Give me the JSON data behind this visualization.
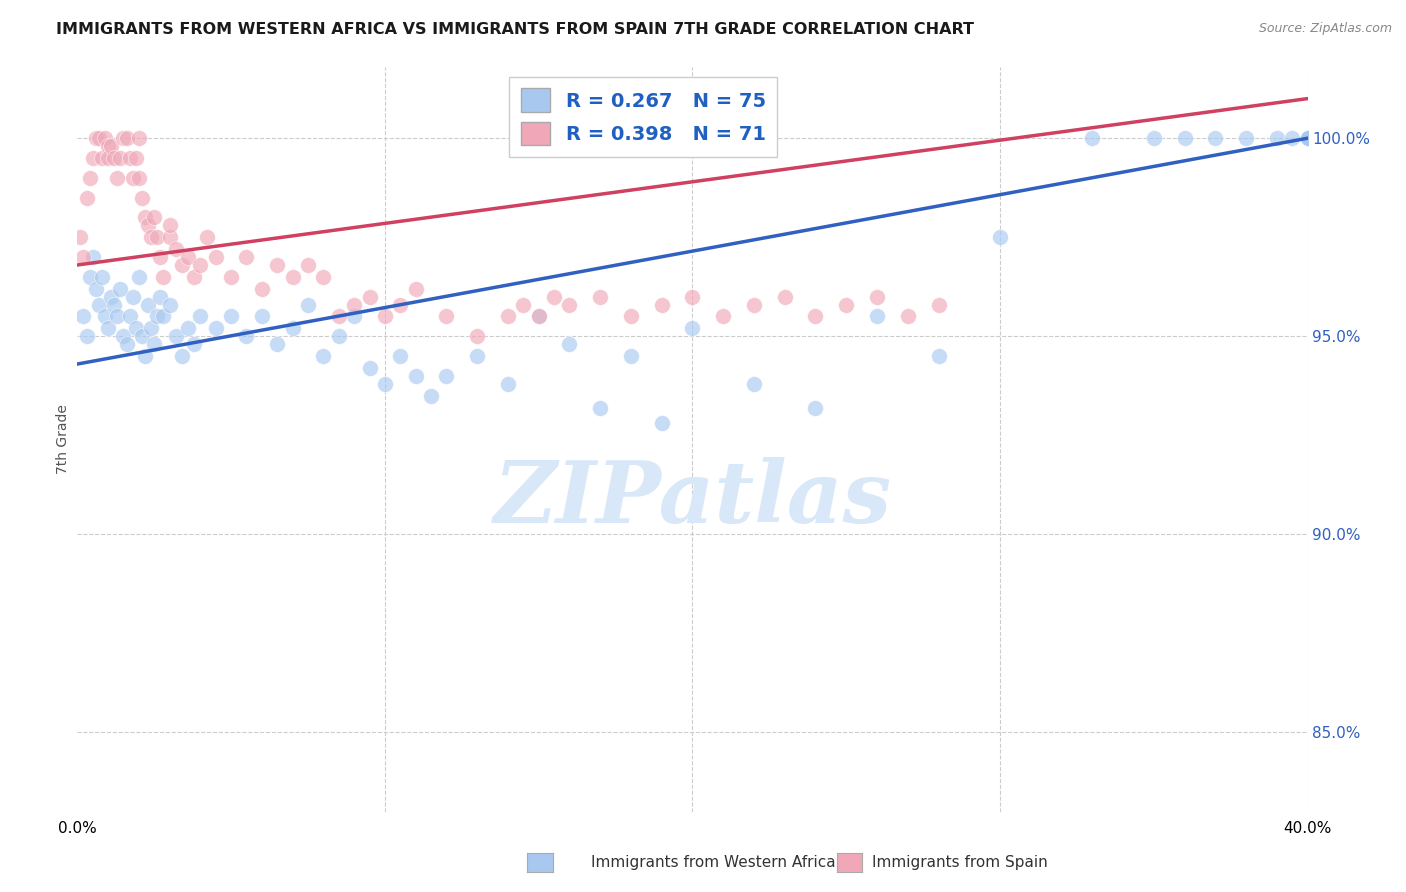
{
  "title": "IMMIGRANTS FROM WESTERN AFRICA VS IMMIGRANTS FROM SPAIN 7TH GRADE CORRELATION CHART",
  "source": "Source: ZipAtlas.com",
  "ylabel": "7th Grade",
  "xlim": [
    0.0,
    40.0
  ],
  "ylim": [
    83.0,
    101.8
  ],
  "R_blue": 0.267,
  "N_blue": 75,
  "R_pink": 0.398,
  "N_pink": 71,
  "blue_color": "#a8c8f0",
  "pink_color": "#f0a8b8",
  "blue_line_color": "#3060c0",
  "pink_line_color": "#d04060",
  "legend_text_color": "#2060c0",
  "watermark_color": "#d8e8f8",
  "background_color": "#ffffff",
  "grid_color": "#cccccc",
  "blue_x": [
    0.2,
    0.3,
    0.4,
    0.5,
    0.6,
    0.7,
    0.8,
    0.9,
    1.0,
    1.1,
    1.2,
    1.3,
    1.4,
    1.5,
    1.6,
    1.7,
    1.8,
    1.9,
    2.0,
    2.1,
    2.2,
    2.3,
    2.4,
    2.5,
    2.6,
    2.7,
    2.8,
    3.0,
    3.2,
    3.4,
    3.6,
    3.8,
    4.0,
    4.5,
    5.0,
    5.5,
    6.0,
    6.5,
    7.0,
    7.5,
    8.0,
    8.5,
    9.0,
    9.5,
    10.0,
    10.5,
    11.0,
    11.5,
    12.0,
    13.0,
    14.0,
    15.0,
    16.0,
    17.0,
    18.0,
    19.0,
    20.0,
    22.0,
    24.0,
    26.0,
    28.0,
    30.0,
    33.0,
    35.0,
    36.0,
    37.0,
    38.0,
    39.0,
    39.5,
    40.0,
    40.0,
    40.0,
    40.0,
    40.0,
    40.0
  ],
  "blue_y": [
    95.5,
    95.0,
    96.5,
    97.0,
    96.2,
    95.8,
    96.5,
    95.5,
    95.2,
    96.0,
    95.8,
    95.5,
    96.2,
    95.0,
    94.8,
    95.5,
    96.0,
    95.2,
    96.5,
    95.0,
    94.5,
    95.8,
    95.2,
    94.8,
    95.5,
    96.0,
    95.5,
    95.8,
    95.0,
    94.5,
    95.2,
    94.8,
    95.5,
    95.2,
    95.5,
    95.0,
    95.5,
    94.8,
    95.2,
    95.8,
    94.5,
    95.0,
    95.5,
    94.2,
    93.8,
    94.5,
    94.0,
    93.5,
    94.0,
    94.5,
    93.8,
    95.5,
    94.8,
    93.2,
    94.5,
    92.8,
    95.2,
    93.8,
    93.2,
    95.5,
    94.5,
    97.5,
    100.0,
    100.0,
    100.0,
    100.0,
    100.0,
    100.0,
    100.0,
    100.0,
    100.0,
    100.0,
    100.0,
    100.0,
    100.0
  ],
  "pink_x": [
    0.1,
    0.2,
    0.3,
    0.4,
    0.5,
    0.6,
    0.7,
    0.8,
    0.9,
    1.0,
    1.0,
    1.1,
    1.2,
    1.3,
    1.4,
    1.5,
    1.6,
    1.7,
    1.8,
    1.9,
    2.0,
    2.0,
    2.1,
    2.2,
    2.3,
    2.4,
    2.5,
    2.6,
    2.7,
    2.8,
    3.0,
    3.0,
    3.2,
    3.4,
    3.6,
    3.8,
    4.0,
    4.2,
    4.5,
    5.0,
    5.5,
    6.0,
    6.5,
    7.0,
    7.5,
    8.0,
    8.5,
    9.0,
    9.5,
    10.0,
    10.5,
    11.0,
    12.0,
    13.0,
    14.0,
    14.5,
    15.0,
    15.5,
    16.0,
    17.0,
    18.0,
    19.0,
    20.0,
    21.0,
    22.0,
    23.0,
    24.0,
    25.0,
    26.0,
    27.0,
    28.0
  ],
  "pink_y": [
    97.5,
    97.0,
    98.5,
    99.0,
    99.5,
    100.0,
    100.0,
    99.5,
    100.0,
    99.8,
    99.5,
    99.8,
    99.5,
    99.0,
    99.5,
    100.0,
    100.0,
    99.5,
    99.0,
    99.5,
    99.0,
    100.0,
    98.5,
    98.0,
    97.8,
    97.5,
    98.0,
    97.5,
    97.0,
    96.5,
    97.5,
    97.8,
    97.2,
    96.8,
    97.0,
    96.5,
    96.8,
    97.5,
    97.0,
    96.5,
    97.0,
    96.2,
    96.8,
    96.5,
    96.8,
    96.5,
    95.5,
    95.8,
    96.0,
    95.5,
    95.8,
    96.2,
    95.5,
    95.0,
    95.5,
    95.8,
    95.5,
    96.0,
    95.8,
    96.0,
    95.5,
    95.8,
    96.0,
    95.5,
    95.8,
    96.0,
    95.5,
    95.8,
    96.0,
    95.5,
    95.8
  ]
}
